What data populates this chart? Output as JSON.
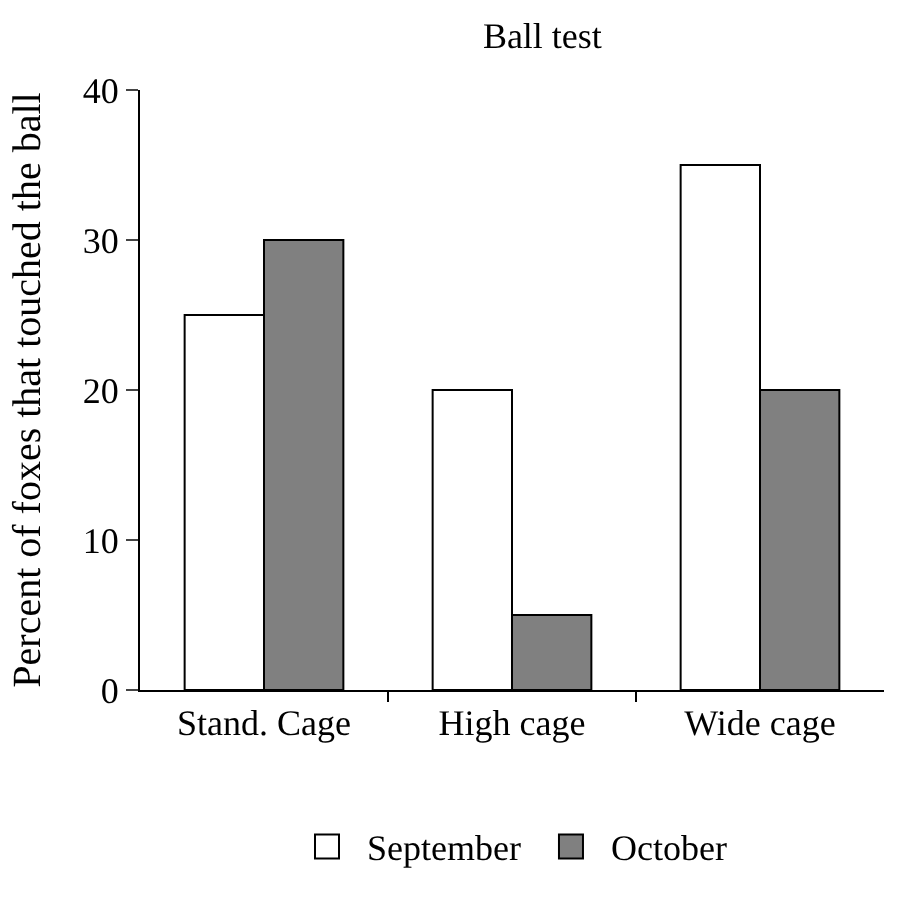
{
  "chart_data": {
    "type": "bar",
    "title": "Ball test",
    "ylabel": "Percent of foxes that touched the ball",
    "categories": [
      "Stand. Cage",
      "High cage",
      "Wide cage"
    ],
    "series": [
      {
        "name": "September",
        "color": "#ffffff",
        "values": [
          25,
          20,
          35
        ]
      },
      {
        "name": "October",
        "color": "#808080",
        "values": [
          30,
          5,
          20
        ]
      }
    ],
    "ylim": [
      0,
      40
    ],
    "yticks": [
      0,
      10,
      20,
      30,
      40
    ],
    "grid": false,
    "legend": "bottom"
  }
}
